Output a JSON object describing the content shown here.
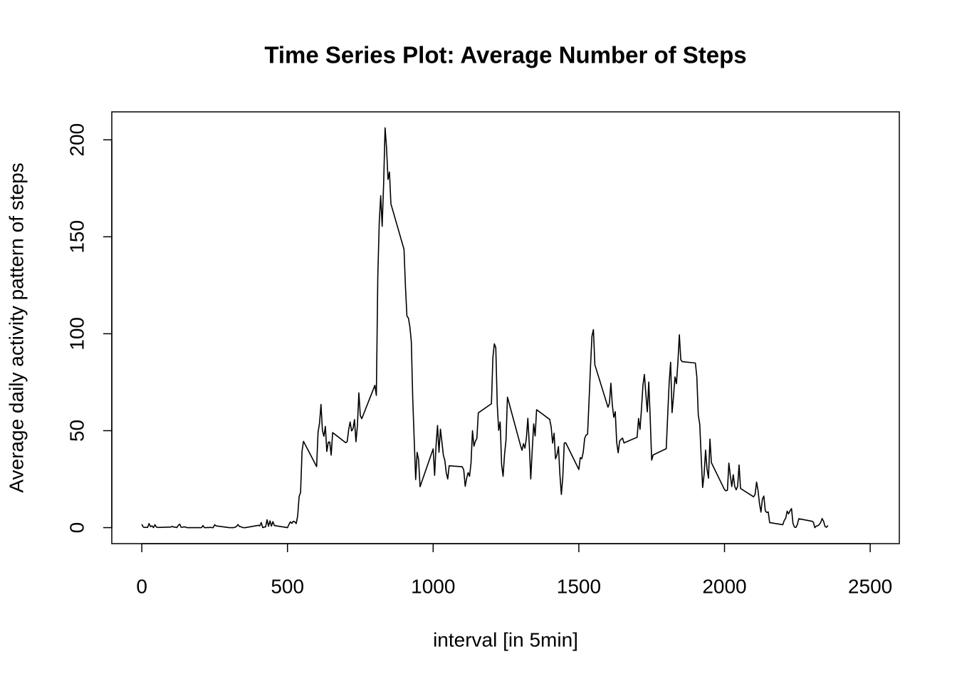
{
  "chart_data": {
    "type": "line",
    "title": "Time Series Plot: Average Number of Steps",
    "xlabel": "interval [in 5min]",
    "ylabel": "Average daily activity pattern of steps",
    "color": "#000000",
    "xlim": [
      -103,
      2600
    ],
    "ylim": [
      -8.25,
      214.42
    ],
    "xticks": [
      0,
      500,
      1000,
      1500,
      2000,
      2500
    ],
    "yticks": [
      0,
      50,
      100,
      150,
      200
    ],
    "x": [
      0,
      5,
      10,
      15,
      20,
      25,
      30,
      35,
      40,
      45,
      50,
      55,
      100,
      105,
      110,
      115,
      120,
      125,
      130,
      135,
      140,
      145,
      150,
      155,
      200,
      205,
      210,
      215,
      220,
      225,
      230,
      235,
      240,
      245,
      250,
      255,
      300,
      305,
      310,
      315,
      320,
      325,
      330,
      335,
      340,
      345,
      350,
      355,
      400,
      405,
      410,
      415,
      420,
      425,
      430,
      435,
      440,
      445,
      450,
      455,
      500,
      505,
      510,
      515,
      520,
      525,
      530,
      535,
      540,
      545,
      550,
      555,
      600,
      605,
      610,
      615,
      620,
      625,
      630,
      635,
      640,
      645,
      650,
      655,
      700,
      705,
      710,
      715,
      720,
      725,
      730,
      735,
      740,
      745,
      750,
      755,
      800,
      805,
      810,
      815,
      820,
      825,
      830,
      835,
      840,
      845,
      850,
      855,
      900,
      905,
      910,
      915,
      920,
      925,
      930,
      935,
      940,
      945,
      950,
      955,
      1000,
      1005,
      1010,
      1015,
      1020,
      1025,
      1030,
      1035,
      1040,
      1045,
      1050,
      1055,
      1100,
      1105,
      1110,
      1115,
      1120,
      1125,
      1130,
      1135,
      1140,
      1145,
      1150,
      1155,
      1200,
      1205,
      1210,
      1215,
      1220,
      1225,
      1230,
      1235,
      1240,
      1245,
      1250,
      1255,
      1300,
      1305,
      1310,
      1315,
      1320,
      1325,
      1330,
      1335,
      1340,
      1345,
      1350,
      1355,
      1400,
      1405,
      1410,
      1415,
      1420,
      1425,
      1430,
      1435,
      1440,
      1445,
      1450,
      1455,
      1500,
      1505,
      1510,
      1515,
      1520,
      1525,
      1530,
      1535,
      1540,
      1545,
      1550,
      1555,
      1600,
      1605,
      1610,
      1615,
      1620,
      1625,
      1630,
      1635,
      1640,
      1645,
      1650,
      1655,
      1700,
      1705,
      1710,
      1715,
      1720,
      1725,
      1730,
      1735,
      1740,
      1745,
      1750,
      1755,
      1800,
      1805,
      1810,
      1815,
      1820,
      1825,
      1830,
      1835,
      1840,
      1845,
      1850,
      1855,
      1900,
      1905,
      1910,
      1915,
      1920,
      1925,
      1930,
      1935,
      1940,
      1945,
      1950,
      1955,
      2000,
      2005,
      2010,
      2015,
      2020,
      2025,
      2030,
      2035,
      2040,
      2045,
      2050,
      2055,
      2100,
      2105,
      2110,
      2115,
      2120,
      2125,
      2130,
      2135,
      2140,
      2145,
      2150,
      2155,
      2200,
      2205,
      2210,
      2215,
      2220,
      2225,
      2230,
      2235,
      2240,
      2245,
      2250,
      2255,
      2300,
      2305,
      2310,
      2315,
      2320,
      2325,
      2330,
      2335,
      2340,
      2345,
      2350,
      2355
    ],
    "values": [
      1.7,
      0.3,
      0.1,
      0.2,
      0.1,
      2.1,
      0.5,
      0.9,
      0,
      1.5,
      0.3,
      0.1,
      0.3,
      0.7,
      0.2,
      0.3,
      0,
      1.1,
      1.8,
      0.2,
      0.2,
      0.4,
      0.3,
      0,
      0,
      0,
      1.1,
      0,
      0,
      0.1,
      0,
      0.2,
      0,
      0,
      1.5,
      0.9,
      0,
      0,
      0,
      0,
      0.2,
      0.6,
      1.6,
      0.6,
      0.5,
      0.1,
      0,
      0,
      1.2,
      0.9,
      2.6,
      0,
      0.3,
      0.4,
      4.1,
      0.7,
      3.5,
      0.8,
      3.1,
      1.1,
      0,
      1.6,
      3.0,
      2.2,
      3.3,
      3.0,
      2.1,
      6.1,
      16.0,
      18.3,
      39.5,
      44.5,
      31.5,
      49.3,
      53.8,
      63.5,
      50.0,
      47.1,
      52.2,
      39.3,
      44.0,
      44.2,
      37.4,
      49.0,
      43.8,
      44.4,
      50.5,
      54.5,
      49.9,
      51.0,
      55.7,
      44.3,
      52.3,
      69.5,
      57.8,
      56.2,
      73.4,
      68.2,
      129.4,
      157.5,
      171.2,
      155.4,
      177.3,
      206.2,
      195.9,
      179.6,
      183.4,
      167.0,
      143.5,
      124.0,
      109.1,
      108.1,
      103.7,
      96.0,
      66.2,
      45.2,
      24.8,
      38.8,
      35.0,
      21.1,
      40.6,
      27.0,
      42.4,
      52.7,
      38.9,
      50.8,
      44.3,
      37.4,
      34.7,
      28.3,
      25.1,
      31.9,
      31.4,
      29.7,
      21.3,
      25.5,
      28.4,
      26.5,
      33.4,
      50.0,
      42.0,
      44.6,
      46.0,
      59.2,
      63.9,
      87.7,
      94.8,
      92.8,
      63.4,
      50.2,
      54.5,
      32.4,
      26.5,
      37.7,
      45.1,
      67.3,
      42.3,
      39.9,
      43.3,
      41.0,
      46.2,
      56.4,
      42.8,
      25.1,
      40.0,
      53.5,
      47.3,
      60.8,
      55.8,
      52.0,
      43.6,
      48.7,
      35.5,
      37.5,
      41.8,
      27.5,
      17.1,
      26.1,
      43.6,
      43.8,
      30.0,
      36.1,
      35.5,
      38.8,
      46.0,
      47.8,
      48.1,
      65.3,
      82.9,
      98.7,
      102.1,
      84.0,
      62.1,
      64.1,
      74.5,
      63.2,
      56.9,
      59.8,
      43.9,
      38.6,
      44.7,
      45.5,
      46.2,
      43.7,
      46.6,
      56.3,
      50.7,
      61.2,
      73.4,
      79.0,
      68.9,
      59.7,
      75.1,
      56.5,
      34.8,
      37.5,
      40.7,
      58.0,
      74.7,
      85.3,
      59.3,
      67.8,
      77.7,
      74.2,
      85.3,
      99.5,
      86.6,
      85.6,
      84.9,
      77.8,
      58.0,
      53.4,
      36.3,
      20.7,
      27.4,
      40.0,
      30.2,
      25.5,
      45.7,
      33.5,
      19.6,
      19.0,
      19.3,
      33.3,
      26.8,
      21.2,
      27.3,
      21.3,
      19.5,
      21.3,
      32.3,
      20.2,
      15.9,
      17.2,
      23.5,
      19.2,
      12.5,
      8.0,
      14.7,
      16.3,
      8.7,
      7.8,
      8.1,
      2.6,
      1.5,
      3.7,
      4.8,
      8.5,
      7.1,
      8.7,
      9.8,
      2.2,
      0.3,
      0.1,
      1.6,
      4.6,
      3.3,
      2.8,
      0,
      0.8,
      1.0,
      1.6,
      2.6,
      4.7,
      3.3,
      0.6,
      0.2,
      1.1
    ]
  }
}
